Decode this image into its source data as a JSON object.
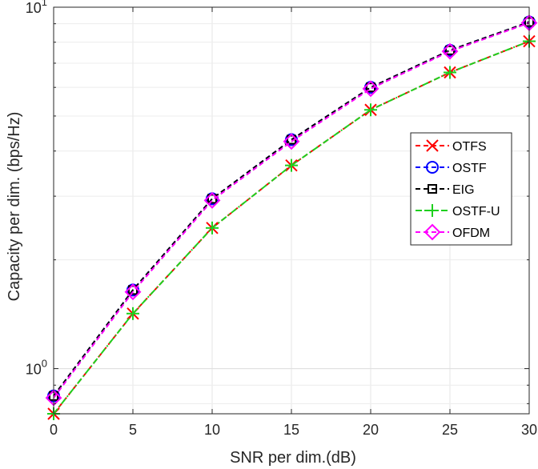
{
  "chart_data": {
    "type": "line",
    "xlabel": "SNR per dim.(dB)",
    "ylabel": "Capacity per dim. (bps/Hz)",
    "xlim": [
      0,
      30
    ],
    "ylim": [
      0.75,
      10
    ],
    "y_scale": "log",
    "grid": true,
    "legend_position": "right-middle",
    "x_ticks": [
      "0",
      "5",
      "10",
      "15",
      "20",
      "25",
      "30"
    ],
    "y_ticks": [
      {
        "value": 1,
        "base": "10",
        "exp": "0"
      },
      {
        "value": 10,
        "base": "10",
        "exp": "1"
      }
    ],
    "x": [
      0,
      5,
      10,
      15,
      20,
      25,
      30
    ],
    "series": [
      {
        "name": "OTFS",
        "color": "#ff0000",
        "marker": "x",
        "values": [
          0.75,
          1.42,
          2.45,
          3.65,
          5.2,
          6.6,
          8.05
        ]
      },
      {
        "name": "OSTF",
        "color": "#0000ff",
        "marker": "circle",
        "values": [
          0.84,
          1.65,
          2.95,
          4.3,
          6.0,
          7.6,
          9.1
        ]
      },
      {
        "name": "EIG",
        "color": "#000000",
        "marker": "square",
        "values": [
          0.84,
          1.65,
          2.95,
          4.3,
          6.0,
          7.6,
          9.1
        ]
      },
      {
        "name": "OSTF-U",
        "color": "#1ed01e",
        "marker": "plus",
        "values": [
          0.75,
          1.42,
          2.45,
          3.65,
          5.2,
          6.6,
          8.05
        ]
      },
      {
        "name": "OFDM",
        "color": "#ff00ff",
        "marker": "diamond",
        "values": [
          0.83,
          1.63,
          2.92,
          4.25,
          5.95,
          7.55,
          9.05
        ]
      }
    ]
  }
}
